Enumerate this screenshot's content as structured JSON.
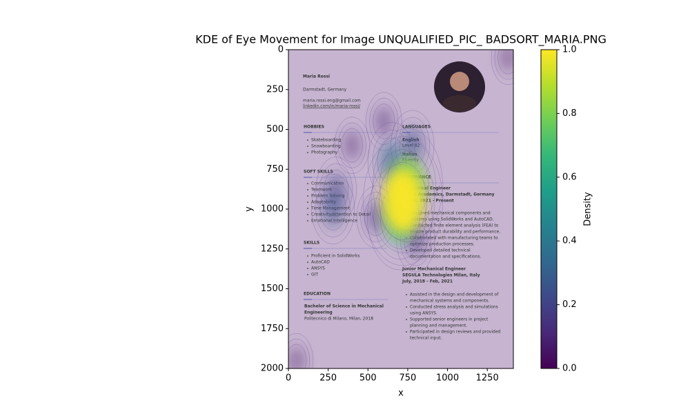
{
  "chart_data": {
    "type": "kde",
    "title": "KDE of Eye Movement for Image UNQUALIFIED_PIC_ BADSORT_MARIA.PNG",
    "xlabel": "x",
    "ylabel": "y",
    "xlim": [
      0,
      1414
    ],
    "ylim": [
      2000,
      0
    ],
    "xticks": [
      0,
      250,
      500,
      750,
      1000,
      1250
    ],
    "yticks": [
      0,
      250,
      500,
      750,
      1000,
      1250,
      1500,
      1750,
      2000
    ],
    "colormap": "viridis",
    "colorbar": {
      "label": "Density",
      "lim": [
        0,
        1
      ],
      "ticks": [
        {
          "value": 0,
          "label": "0.0"
        },
        {
          "value": 0.2,
          "label": "0.2"
        },
        {
          "value": 0.4,
          "label": "0.4"
        },
        {
          "value": 0.6,
          "label": "0.6"
        },
        {
          "value": 0.8,
          "label": "0.8"
        },
        {
          "value": 1,
          "label": "1.0"
        }
      ]
    },
    "density": {
      "x": [
        50,
        1380,
        400,
        600,
        550,
        800,
        300,
        780,
        280,
        650,
        700,
        750,
        720
      ],
      "y": [
        1950,
        50,
        600,
        450,
        1050,
        1200,
        880,
        600,
        1000,
        700,
        1050,
        850,
        950
      ],
      "values": [
        0.05,
        0.05,
        0.08,
        0.1,
        0.15,
        0.15,
        0.2,
        0.25,
        0.25,
        0.35,
        0.7,
        0.8,
        1.0
      ]
    },
    "image": {
      "name": "Maria Rossi",
      "location": "Darmstadt, Germany",
      "email": "maria.rossi.eng@gmail.com",
      "link": "linkedin.com/in/maria-rossi/",
      "hobbies": {
        "heading": "HOBBIES",
        "items": [
          "Skateboarding",
          "Snowboarding",
          "Photography"
        ]
      },
      "soft_skills": {
        "heading": "SOFT SKILLS",
        "items": [
          "Communication",
          "Teamwork",
          "Problem Solving",
          "Adaptability",
          "Time Management",
          "Creativity/Attention to Detail",
          "Emotional Intelligence"
        ]
      },
      "skills": {
        "heading": "SKILLS",
        "items": [
          "Proficient in SolidWorks",
          "AutoCAD",
          "ANSYS",
          "GIT"
        ]
      },
      "education": {
        "heading": "EDUCATION",
        "lines": [
          "Bachelor of Science in Mechanical",
          "Engineering",
          "Politecnico di Milano, Milan, 2018"
        ]
      },
      "languages": {
        "heading": "LANGUAGES",
        "lines": [
          "English",
          "Level B2",
          "Italian",
          "Fluently"
        ]
      },
      "experience": {
        "heading": "EXPERIENCE",
        "jobs": [
          {
            "lines": [
              "Mechanical Engineer",
              "Astrid Academics, Darmstadt, Germany",
              "March, 2021 - Present"
            ],
            "bullets": [
              [
                "Designed mechanical components and",
                "systems using SolidWorks and AutoCAD."
              ],
              [
                "Conducted finite element analysis (FEA) to",
                "ensure product durability and performance."
              ],
              [
                "Collaborated with manufacturing teams to",
                "optimize production processes."
              ],
              [
                "Developed detailed technical",
                "documentation and specifications."
              ]
            ]
          },
          {
            "lines": [
              "Junior Mechanical Engineer",
              "SEGULA Technologies Milan, Italy",
              "July, 2018 - Feb, 2021"
            ],
            "bullets": [
              [
                "Assisted in the design and development of",
                "mechanical systems and components."
              ],
              [
                "Conducted stress analysis and simulations",
                "using ANSYS."
              ],
              [
                "Supported senior engineers in project",
                "planning and management."
              ],
              [
                "Participated in design reviews and provided",
                "technical input."
              ]
            ]
          }
        ]
      }
    }
  }
}
